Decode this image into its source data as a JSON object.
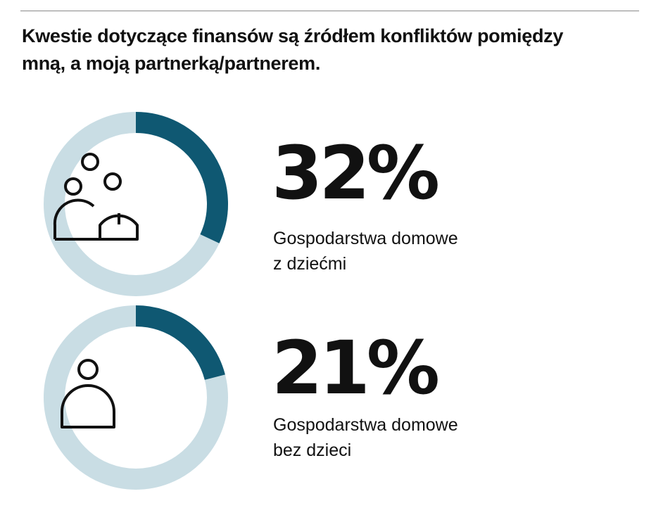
{
  "headline": {
    "line1": "Kwestie dotyczące finansów są źródłem konfliktów pomiędzy",
    "line2": "mną, a moją partnerką/partnerem."
  },
  "colors": {
    "accent": "#0f5872",
    "track": "#c9dde4",
    "text": "#111111",
    "rule": "#8a8a8a"
  },
  "chart_data": [
    {
      "type": "pie",
      "style": "donut",
      "value": 32,
      "value_label": "32%",
      "label_lines": [
        "Gospodarstwa domowe",
        "z dziećmi"
      ],
      "icon": "family-with-children-icon"
    },
    {
      "type": "pie",
      "style": "donut",
      "value": 21,
      "value_label": "21%",
      "label_lines": [
        "Gospodarstwa domowe",
        "bez dzieci"
      ],
      "icon": "single-person-icon"
    }
  ]
}
